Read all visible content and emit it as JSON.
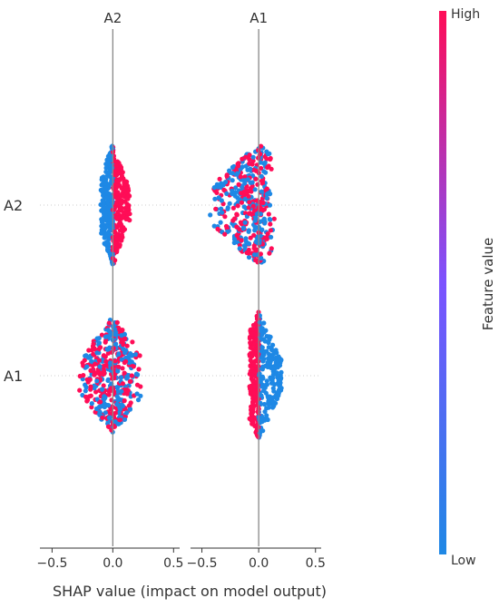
{
  "chart_data": {
    "type": "scatter",
    "subtype": "shap-interaction-summary",
    "panel_columns": [
      "A2",
      "A1"
    ],
    "row_features": [
      "A2",
      "A1"
    ],
    "xlabel": "SHAP value (impact on model output)",
    "xlim": [
      -0.6,
      0.55
    ],
    "xticks": [
      -0.5,
      0.0,
      0.5
    ],
    "xtick_labels": [
      "−0.5",
      "0.0",
      "0.5"
    ],
    "colorbar": {
      "label": "Feature value",
      "high_label": "High",
      "low_label": "Low",
      "low_color": "#1E88E5",
      "high_color": "#FF0D57"
    },
    "panels": [
      {
        "row": "A2",
        "col": "A2",
        "low_range": [
          -0.1,
          0.0
        ],
        "high_range": [
          0.0,
          0.14
        ],
        "mixed": false,
        "height": 0.72,
        "count": 440
      },
      {
        "row": "A2",
        "col": "A1",
        "low_range": [
          -0.45,
          0.15
        ],
        "high_range": [
          -0.45,
          0.15
        ],
        "mixed": true,
        "height": 0.72,
        "count": 420
      },
      {
        "row": "A1",
        "col": "A2",
        "low_range": [
          -0.28,
          0.25
        ],
        "high_range": [
          -0.28,
          0.25
        ],
        "mixed": true,
        "height": 0.7,
        "count": 460
      },
      {
        "row": "A1",
        "col": "A1",
        "low_range": [
          0.0,
          0.2
        ],
        "high_range": [
          -0.08,
          0.0
        ],
        "mixed": false,
        "height": 0.75,
        "count": 440
      }
    ]
  }
}
